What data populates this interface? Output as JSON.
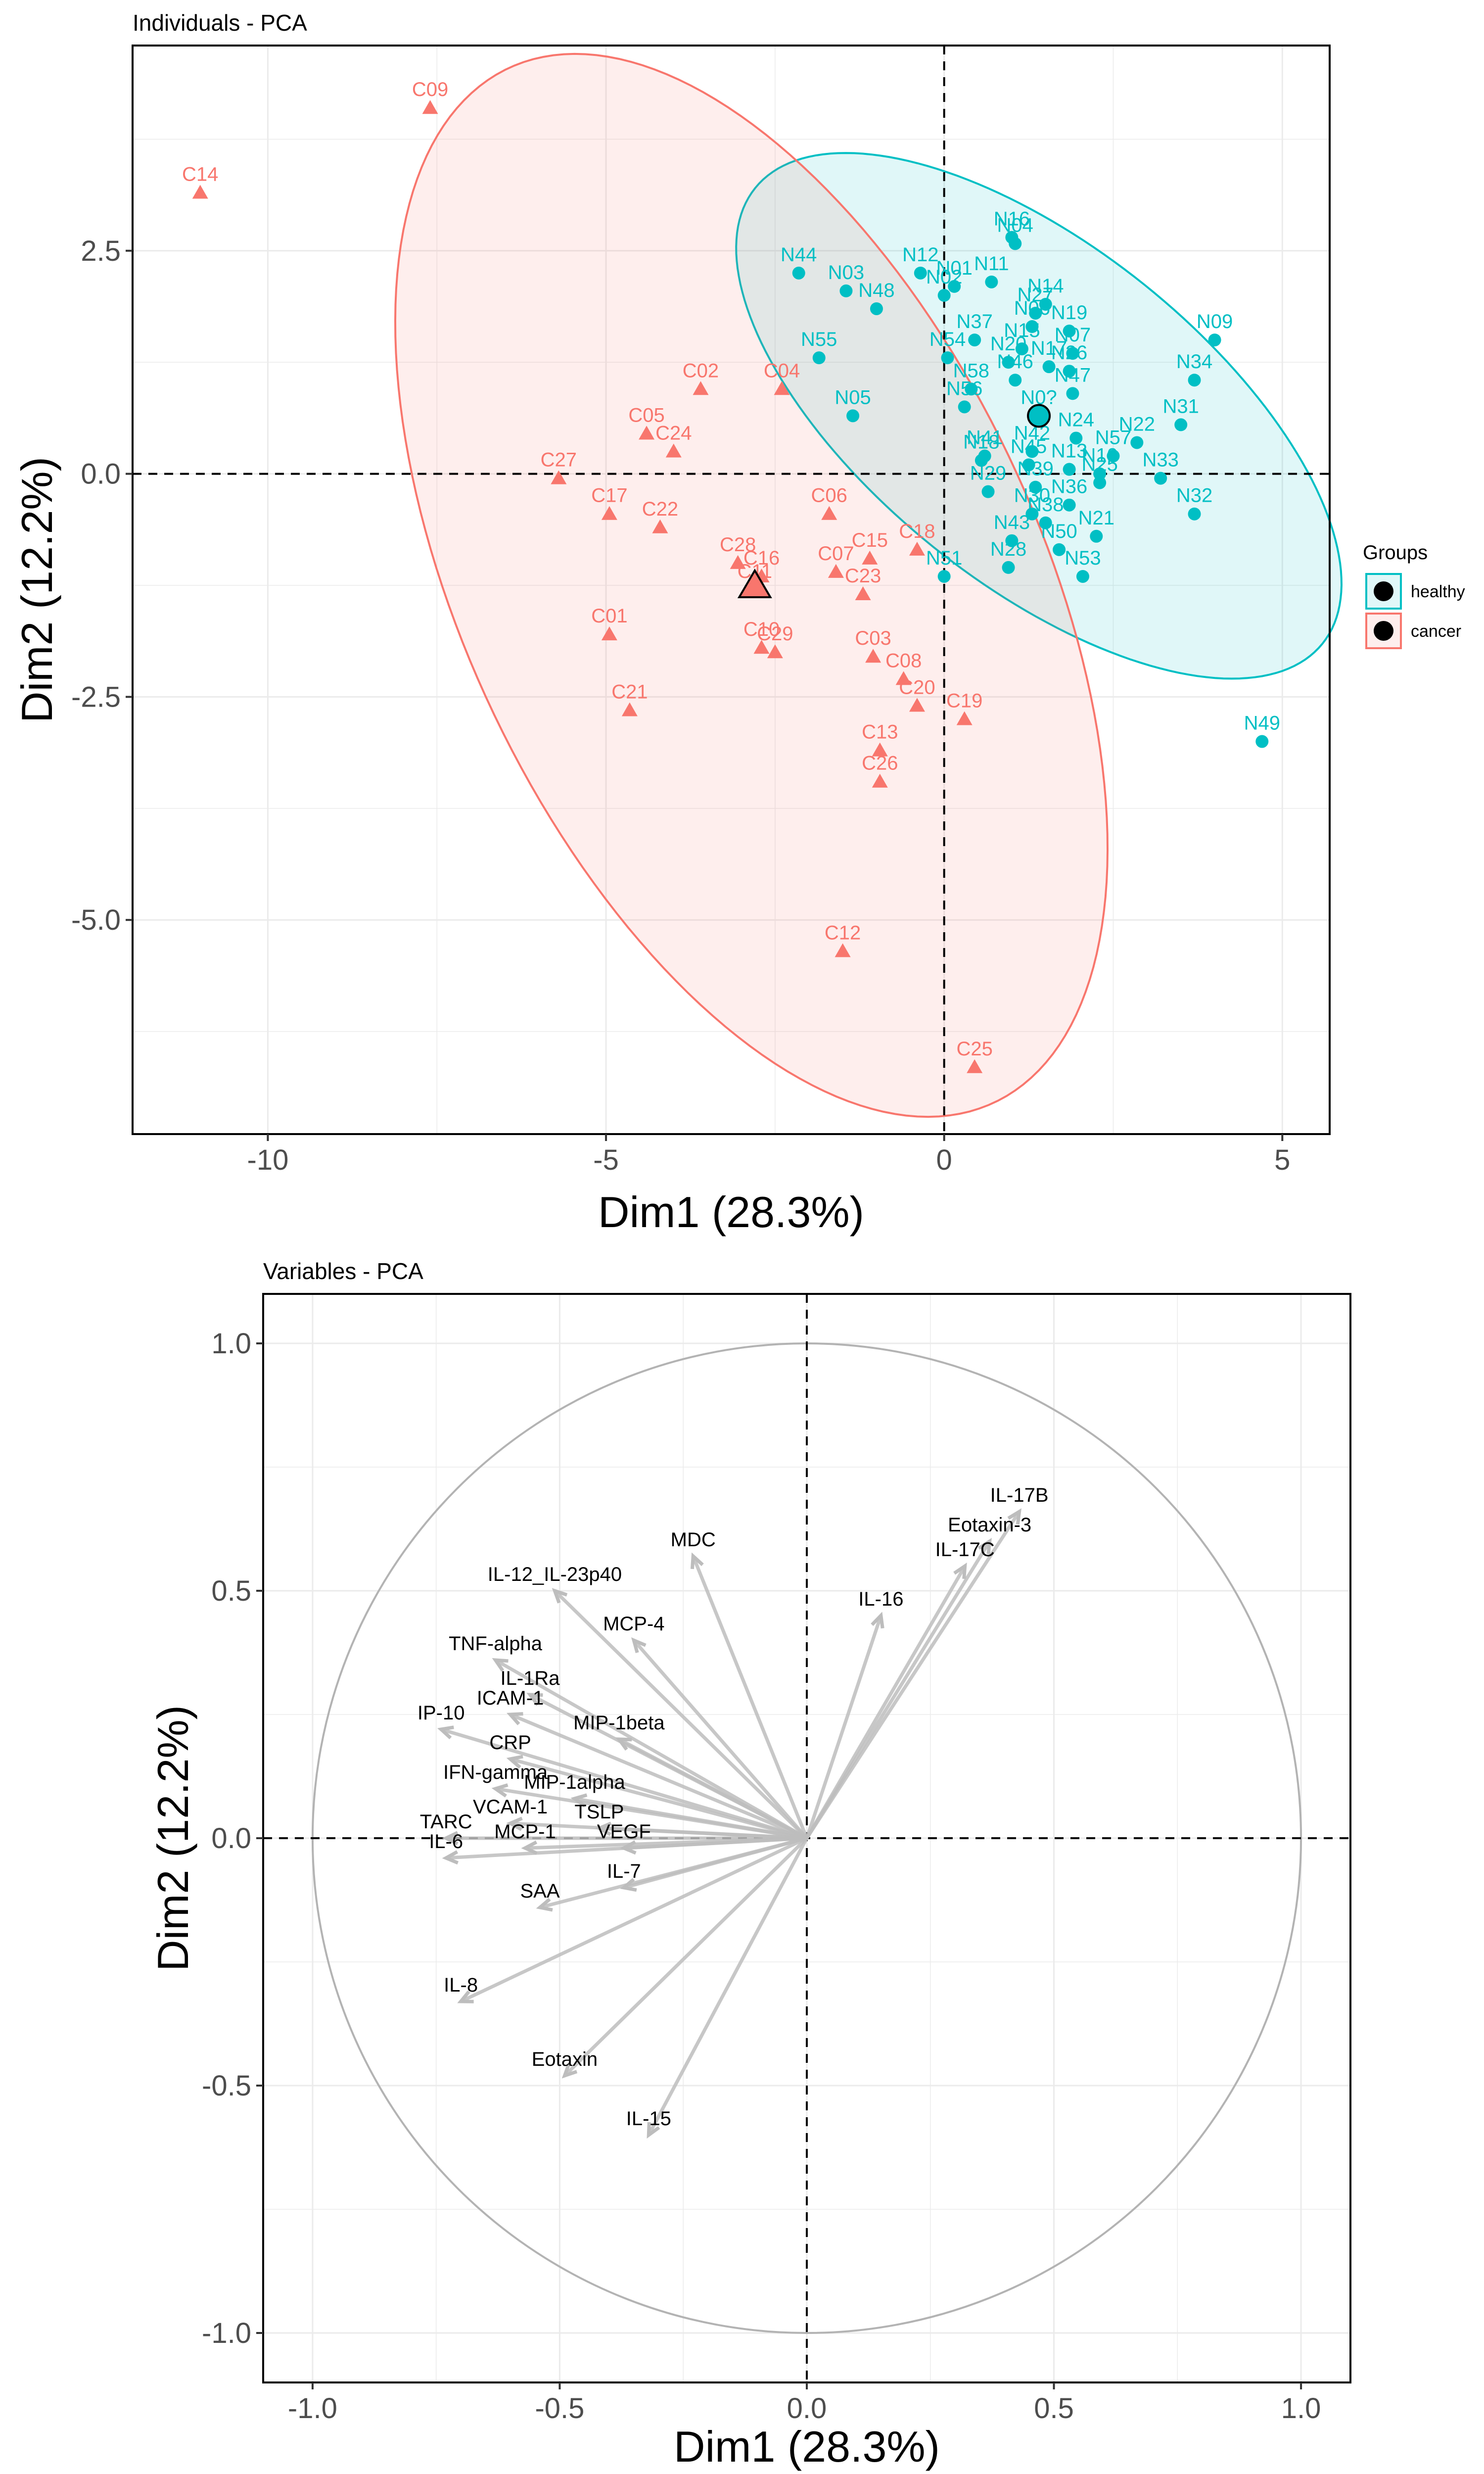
{
  "colors": {
    "healthy": "#00BFC4",
    "cancer": "#F8766D",
    "grid": "#ebebeb",
    "arrow": "#bdbdbd"
  },
  "chart_data": [
    {
      "type": "scatter",
      "title": "Individuals - PCA",
      "xlabel": "Dim1 (28.3%)",
      "ylabel": "Dim2 (12.2%)",
      "xlim": [
        -12,
        5.7
      ],
      "ylim": [
        -7.4,
        4.8
      ],
      "xticks": [
        -10,
        -5,
        0,
        5
      ],
      "xtick_labels": [
        "-10",
        "-5",
        "0",
        "5"
      ],
      "yticks": [
        2.5,
        0,
        -2.5,
        -5
      ],
      "ytick_labels": [
        "2.5",
        "0.0",
        "-2.5",
        "-5.0"
      ],
      "grid": true,
      "legend": {
        "title": "Groups",
        "position": "right",
        "entries": [
          "healthy",
          "cancer"
        ]
      },
      "series": [
        {
          "name": "healthy",
          "marker": "circle",
          "centroid": {
            "x": 1.4,
            "y": 0.65
          },
          "ellipse": {
            "cx": 1.4,
            "cy": 0.65,
            "rx": 4.95,
            "ry": 2.05,
            "angle": -28
          },
          "points": [
            {
              "label": "N16",
              "x": 1.0,
              "y": 2.65
            },
            {
              "label": "N04",
              "x": 1.05,
              "y": 2.58
            },
            {
              "label": "N12",
              "x": -0.35,
              "y": 2.25
            },
            {
              "label": "N01",
              "x": 0.15,
              "y": 2.1
            },
            {
              "label": "N11",
              "x": 0.7,
              "y": 2.15
            },
            {
              "label": "N14",
              "x": 1.5,
              "y": 1.9
            },
            {
              "label": "N44",
              "x": -2.15,
              "y": 2.25
            },
            {
              "label": "N03",
              "x": -1.45,
              "y": 2.05
            },
            {
              "label": "N02",
              "x": 0.0,
              "y": 2.0
            },
            {
              "label": "N27",
              "x": 1.35,
              "y": 1.8
            },
            {
              "label": "N48",
              "x": -1.0,
              "y": 1.85
            },
            {
              "label": "N06",
              "x": 1.3,
              "y": 1.65
            },
            {
              "label": "N19",
              "x": 1.85,
              "y": 1.6
            },
            {
              "label": "N37",
              "x": 0.45,
              "y": 1.5
            },
            {
              "label": "N15",
              "x": 1.15,
              "y": 1.4
            },
            {
              "label": "N07",
              "x": 1.9,
              "y": 1.35
            },
            {
              "label": "N09",
              "x": 4.0,
              "y": 1.5
            },
            {
              "label": "N54",
              "x": 0.05,
              "y": 1.3
            },
            {
              "label": "N20",
              "x": 0.95,
              "y": 1.25
            },
            {
              "label": "N17",
              "x": 1.55,
              "y": 1.2
            },
            {
              "label": "N26",
              "x": 1.85,
              "y": 1.15
            },
            {
              "label": "N55",
              "x": -1.85,
              "y": 1.3
            },
            {
              "label": "N46",
              "x": 1.05,
              "y": 1.05
            },
            {
              "label": "N58",
              "x": 0.4,
              "y": 0.95
            },
            {
              "label": "N47",
              "x": 1.9,
              "y": 0.9
            },
            {
              "label": "N34",
              "x": 3.7,
              "y": 1.05
            },
            {
              "label": "N05",
              "x": -1.35,
              "y": 0.65
            },
            {
              "label": "N56",
              "x": 0.3,
              "y": 0.75
            },
            {
              "label": "N0?",
              "x": 1.4,
              "y": 0.65
            },
            {
              "label": "N31",
              "x": 3.5,
              "y": 0.55
            },
            {
              "label": "N24",
              "x": 1.95,
              "y": 0.4
            },
            {
              "label": "N22",
              "x": 2.85,
              "y": 0.35
            },
            {
              "label": "N41",
              "x": 0.6,
              "y": 0.2
            },
            {
              "label": "N42",
              "x": 1.3,
              "y": 0.25
            },
            {
              "label": "N57",
              "x": 2.5,
              "y": 0.2
            },
            {
              "label": "N18",
              "x": 0.55,
              "y": 0.15
            },
            {
              "label": "N45",
              "x": 1.25,
              "y": 0.1
            },
            {
              "label": "N13",
              "x": 1.85,
              "y": 0.05
            },
            {
              "label": "N10",
              "x": 2.3,
              "y": 0.0
            },
            {
              "label": "N25",
              "x": 2.3,
              "y": -0.1
            },
            {
              "label": "N33",
              "x": 3.2,
              "y": -0.05
            },
            {
              "label": "N29",
              "x": 0.65,
              "y": -0.2
            },
            {
              "label": "N39",
              "x": 1.35,
              "y": -0.15
            },
            {
              "label": "N36",
              "x": 1.85,
              "y": -0.35
            },
            {
              "label": "N30",
              "x": 1.3,
              "y": -0.45
            },
            {
              "label": "N32",
              "x": 3.7,
              "y": -0.45
            },
            {
              "label": "N38",
              "x": 1.5,
              "y": -0.55
            },
            {
              "label": "N43",
              "x": 1.0,
              "y": -0.75
            },
            {
              "label": "N21",
              "x": 2.25,
              "y": -0.7
            },
            {
              "label": "N50",
              "x": 1.7,
              "y": -0.85
            },
            {
              "label": "N51",
              "x": 0.0,
              "y": -1.15
            },
            {
              "label": "N28",
              "x": 0.95,
              "y": -1.05
            },
            {
              "label": "N53",
              "x": 2.05,
              "y": -1.15
            },
            {
              "label": "N49",
              "x": 4.7,
              "y": -3.0
            }
          ]
        },
        {
          "name": "cancer",
          "marker": "triangle",
          "centroid": {
            "x": -2.8,
            "y": -1.25
          },
          "ellipse": {
            "cx": -2.85,
            "cy": -1.25,
            "rx": 6.9,
            "ry": 3.95,
            "angle": -52
          },
          "points": [
            {
              "label": "C09",
              "x": -7.6,
              "y": 4.1
            },
            {
              "label": "C14",
              "x": -11.0,
              "y": 3.15
            },
            {
              "label": "C02",
              "x": -3.6,
              "y": 0.95
            },
            {
              "label": "C04",
              "x": -2.4,
              "y": 0.95
            },
            {
              "label": "C05",
              "x": -4.4,
              "y": 0.45
            },
            {
              "label": "C24",
              "x": -4.0,
              "y": 0.25
            },
            {
              "label": "C27",
              "x": -5.7,
              "y": -0.05
            },
            {
              "label": "C17",
              "x": -4.95,
              "y": -0.45
            },
            {
              "label": "C22",
              "x": -4.2,
              "y": -0.6
            },
            {
              "label": "C06",
              "x": -1.7,
              "y": -0.45
            },
            {
              "label": "C28",
              "x": -3.05,
              "y": -1.0
            },
            {
              "label": "C16",
              "x": -2.7,
              "y": -1.15
            },
            {
              "label": "C11",
              "x": -2.8,
              "y": -1.3
            },
            {
              "label": "C15",
              "x": -1.1,
              "y": -0.95
            },
            {
              "label": "C18",
              "x": -0.4,
              "y": -0.85
            },
            {
              "label": "C07",
              "x": -1.6,
              "y": -1.1
            },
            {
              "label": "C23",
              "x": -1.2,
              "y": -1.35
            },
            {
              "label": "C01",
              "x": -4.95,
              "y": -1.8
            },
            {
              "label": "C10",
              "x": -2.7,
              "y": -1.95
            },
            {
              "label": "C29",
              "x": -2.5,
              "y": -2.0
            },
            {
              "label": "C03",
              "x": -1.05,
              "y": -2.05
            },
            {
              "label": "C08",
              "x": -0.6,
              "y": -2.3
            },
            {
              "label": "C21",
              "x": -4.65,
              "y": -2.65
            },
            {
              "label": "C20",
              "x": -0.4,
              "y": -2.6
            },
            {
              "label": "C19",
              "x": 0.3,
              "y": -2.75
            },
            {
              "label": "C13",
              "x": -0.95,
              "y": -3.1
            },
            {
              "label": "C26",
              "x": -0.95,
              "y": -3.45
            },
            {
              "label": "C12",
              "x": -1.5,
              "y": -5.35
            },
            {
              "label": "C25",
              "x": 0.45,
              "y": -6.65
            }
          ]
        }
      ]
    },
    {
      "type": "line",
      "title": "Variables - PCA",
      "xlabel": "Dim1 (28.3%)",
      "ylabel": "Dim2 (12.2%)",
      "xlim": [
        -1.1,
        1.1
      ],
      "ylim": [
        -1.1,
        1.1
      ],
      "xticks": [
        -1.0,
        -0.5,
        0,
        0.5,
        1.0
      ],
      "xtick_labels": [
        "-1.0",
        "-0.5",
        "0.0",
        "0.5",
        "1.0"
      ],
      "yticks": [
        1.0,
        0.5,
        0,
        -0.5,
        -1.0
      ],
      "ytick_labels": [
        "1.0",
        "0.5",
        "0.0",
        "-0.5",
        "-1.0"
      ],
      "grid": true,
      "unit_circle": true,
      "vectors": [
        {
          "label": "IL-17B",
          "x": 0.43,
          "y": 0.66
        },
        {
          "label": "Eotaxin-3",
          "x": 0.37,
          "y": 0.6
        },
        {
          "label": "IL-17C",
          "x": 0.32,
          "y": 0.55
        },
        {
          "label": "IL-16",
          "x": 0.15,
          "y": 0.45
        },
        {
          "label": "MDC",
          "x": -0.23,
          "y": 0.57
        },
        {
          "label": "IL-12_IL-23p40",
          "x": -0.51,
          "y": 0.5
        },
        {
          "label": "MCP-4",
          "x": -0.35,
          "y": 0.4
        },
        {
          "label": "TNF-alpha",
          "x": -0.63,
          "y": 0.36
        },
        {
          "label": "IL-1Ra",
          "x": -0.56,
          "y": 0.29
        },
        {
          "label": "ICAM-1",
          "x": -0.6,
          "y": 0.25
        },
        {
          "label": "MIP-1beta",
          "x": -0.38,
          "y": 0.2
        },
        {
          "label": "IP-10",
          "x": -0.74,
          "y": 0.22
        },
        {
          "label": "CRP",
          "x": -0.6,
          "y": 0.16
        },
        {
          "label": "IFN-gamma",
          "x": -0.63,
          "y": 0.1
        },
        {
          "label": "MIP-1alpha",
          "x": -0.47,
          "y": 0.08
        },
        {
          "label": "VCAM-1",
          "x": -0.6,
          "y": 0.03
        },
        {
          "label": "TSLP",
          "x": -0.42,
          "y": 0.02
        },
        {
          "label": "TARC",
          "x": -0.73,
          "y": 0.0
        },
        {
          "label": "MCP-1",
          "x": -0.57,
          "y": -0.02
        },
        {
          "label": "VEGF",
          "x": -0.37,
          "y": -0.02
        },
        {
          "label": "IL-6",
          "x": -0.73,
          "y": -0.04
        },
        {
          "label": "IL-7",
          "x": -0.37,
          "y": -0.1
        },
        {
          "label": "SAA",
          "x": -0.54,
          "y": -0.14
        },
        {
          "label": "IL-8",
          "x": -0.7,
          "y": -0.33
        },
        {
          "label": "Eotaxin",
          "x": -0.49,
          "y": -0.48
        },
        {
          "label": "IL-15",
          "x": -0.32,
          "y": -0.6
        }
      ]
    }
  ]
}
